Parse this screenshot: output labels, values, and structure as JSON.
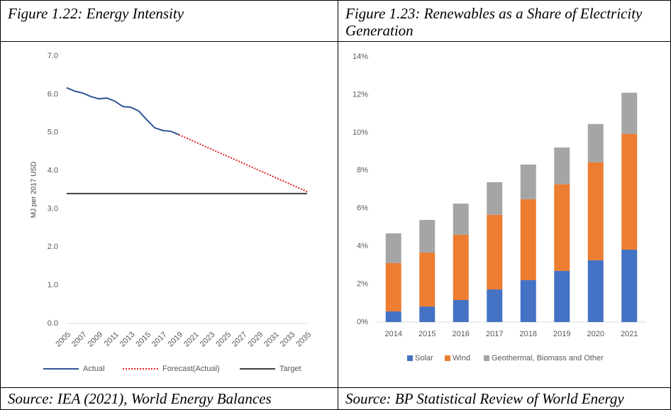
{
  "chart_data": [
    {
      "type": "line",
      "title": "Figure 1.22: Energy Intensity",
      "source": "Source: IEA (2021), World Energy Balances",
      "ylabel": "MJ per 2017 USD",
      "xlim": [
        2005,
        2035
      ],
      "xticks": [
        2005,
        2007,
        2009,
        2011,
        2013,
        2015,
        2017,
        2019,
        2021,
        2023,
        2025,
        2027,
        2029,
        2031,
        2033,
        2035
      ],
      "ylim": [
        0,
        7
      ],
      "yticks": [
        {
          "value": 0,
          "label": "0.0"
        },
        {
          "value": 1,
          "label": "1.0"
        },
        {
          "value": 2,
          "label": "2.0"
        },
        {
          "value": 3,
          "label": "3.0"
        },
        {
          "value": 4,
          "label": "4.0"
        },
        {
          "value": 5,
          "label": "5.0"
        },
        {
          "value": 6,
          "label": "6.0"
        },
        {
          "value": 7,
          "label": "7.0"
        }
      ],
      "grid": false,
      "series": [
        {
          "name": "Actual",
          "color": "#2f5597",
          "style": "solid",
          "x": [
            2005,
            2006,
            2007,
            2008,
            2009,
            2010,
            2011,
            2012,
            2013,
            2014,
            2015,
            2016,
            2017,
            2018,
            2019
          ],
          "values": [
            6.17,
            6.08,
            6.03,
            5.94,
            5.88,
            5.9,
            5.82,
            5.68,
            5.66,
            5.56,
            5.33,
            5.12,
            5.05,
            5.03,
            4.94
          ]
        },
        {
          "name": "Forecast(Actual)",
          "color": "#e0221f",
          "style": "dotted",
          "x": [
            2019,
            2035
          ],
          "values": [
            4.94,
            3.45
          ]
        },
        {
          "name": "Target",
          "color": "#404040",
          "style": "solid",
          "x": [
            2005,
            2035
          ],
          "values": [
            3.4,
            3.4
          ]
        }
      ]
    },
    {
      "type": "bar",
      "stacked": true,
      "title": "Figure 1.23: Renewables as a Share of Electricity Generation",
      "source": "Source: BP Statistical Review of World Energy",
      "categories": [
        "2014",
        "2015",
        "2016",
        "2017",
        "2018",
        "2019",
        "2020",
        "2021"
      ],
      "ylim": [
        0,
        14
      ],
      "yticks": [
        {
          "value": 0,
          "label": "0%"
        },
        {
          "value": 2,
          "label": "2%"
        },
        {
          "value": 4,
          "label": "4%"
        },
        {
          "value": 6,
          "label": "6%"
        },
        {
          "value": 8,
          "label": "8%"
        },
        {
          "value": 10,
          "label": "10%"
        },
        {
          "value": 12,
          "label": "12%"
        },
        {
          "value": 14,
          "label": "14%"
        }
      ],
      "grid": false,
      "series": [
        {
          "name": "Solar",
          "color": "#4472c4",
          "values": [
            0.56,
            0.82,
            1.16,
            1.72,
            2.21,
            2.7,
            3.26,
            3.82
          ]
        },
        {
          "name": "Wind",
          "color": "#ed7d31",
          "values": [
            2.55,
            2.85,
            3.45,
            3.94,
            4.27,
            4.57,
            5.17,
            6.11
          ]
        },
        {
          "name": "Geothermal, Biomass and Other",
          "color": "#a5a5a5",
          "values": [
            1.57,
            1.72,
            1.64,
            1.72,
            1.83,
            1.94,
            2.02,
            2.17
          ]
        }
      ]
    }
  ]
}
